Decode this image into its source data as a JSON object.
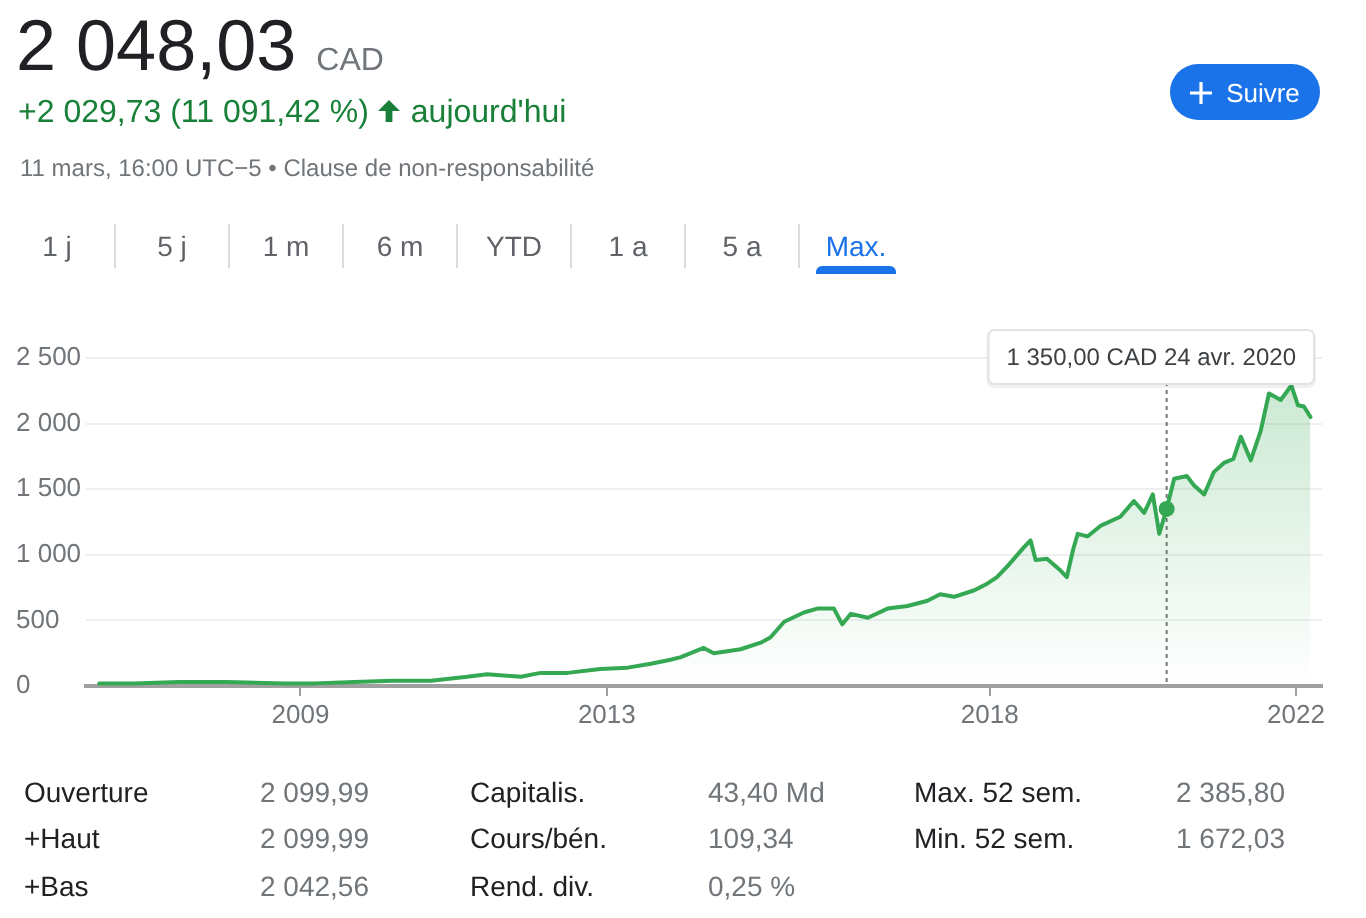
{
  "chart_data": [
    {
      "type": "area",
      "title": "2 048,03 CAD",
      "subtitle": "+2 029,73 (11 091,42 %) aujourd'hui",
      "annotations": [
        "11 mars, 16:00 UTC−5 • Clause de non-responsabilité",
        "1 j",
        "5 j",
        "1 m",
        "6 m",
        "YTD",
        "1 a",
        "5 a",
        "Max.",
        "Suivre"
      ],
      "series": [
        {
          "color": "#34a853",
          "x": [
            "2006-05-17",
            "2006-11-01",
            "2007-06-01",
            "2008-01-15",
            "2008-10-15",
            "2009-03-10",
            "2009-09-15",
            "2010-03-15",
            "2010-09-15",
            "2011-03-07",
            "2011-06-10",
            "2011-11-18",
            "2012-02-20",
            "2012-06-28",
            "2012-12-01",
            "2013-04-10",
            "2013-07-30",
            "2013-11-01",
            "2013-12-20",
            "2014-04-08",
            "2014-05-26",
            "2014-10-01",
            "2015-01-05",
            "2015-02-20",
            "2015-04-27",
            "2015-07-30",
            "2015-10-01",
            "2015-12-20",
            "2016-01-29",
            "2016-03-10",
            "2016-05-30",
            "2016-09-01",
            "2016-12-05",
            "2017-03-10",
            "2017-05-10",
            "2017-07-15",
            "2017-10-20",
            "2017-12-20",
            "2018-02-05",
            "2018-03-25",
            "2018-06-15",
            "2018-07-15",
            "2018-08-08",
            "2018-10-01",
            "2018-12-05",
            "2019-01-04",
            "2019-02-03",
            "2019-02-25",
            "2019-04-12",
            "2019-06-13",
            "2019-09-16",
            "2019-11-20",
            "2020-01-08",
            "2020-02-18",
            "2020-03-20",
            "2020-04-24",
            "2020-05-30",
            "2020-07-30",
            "2020-09-01",
            "2020-10-20",
            "2020-12-05",
            "2021-01-22",
            "2021-03-08",
            "2021-04-13",
            "2021-05-30",
            "2021-07-16",
            "2021-08-25",
            "2021-10-20",
            "2021-12-10",
            "2022-01-10",
            "2022-02-08",
            "2022-03-11"
          ],
          "values": [
            20,
            20,
            30,
            30,
            20,
            20,
            30,
            40,
            40,
            70,
            90,
            70,
            100,
            100,
            130,
            140,
            170,
            200,
            220,
            290,
            250,
            280,
            330,
            370,
            490,
            560,
            590,
            590,
            470,
            550,
            520,
            590,
            610,
            650,
            700,
            680,
            730,
            780,
            830,
            910,
            1060,
            1110,
            960,
            970,
            880,
            830,
            1040,
            1160,
            1140,
            1220,
            1290,
            1410,
            1320,
            1460,
            1160,
            1350,
            1580,
            1600,
            1530,
            1460,
            1630,
            1700,
            1730,
            1900,
            1720,
            1940,
            2230,
            2180,
            2290,
            2140,
            2130,
            2050
          ]
        },
        {
          "type": "scatter",
          "color": "#34a853",
          "marker": "circle",
          "x": [
            "2020-04-24"
          ],
          "values": [
            1350
          ]
        }
      ],
      "xlim": [
        "2006-03-15",
        "2022-05-05"
      ],
      "xticks": [
        "2009",
        "2013",
        "2018",
        "2022"
      ],
      "ylim": [
        0,
        2500
      ],
      "yticks": [
        0,
        500,
        {
          "value": 1000,
          "label": "1 000"
        },
        {
          "value": 1500,
          "label": "1 500"
        },
        {
          "value": 2000,
          "label": "2 000"
        },
        {
          "value": 2500,
          "label": "2 500"
        }
      ],
      "grid": "y",
      "ref_lines": [
        {
          "axis": "x",
          "value": "2020-04-24",
          "label": "1 350,00 CAD 24 avr. 2020",
          "color": "#757575",
          "line_style": "dotted"
        }
      ]
    },
    {
      "type": "other",
      "annotations": [
        "Ouverture",
        "2 099,99",
        "Capitalis.",
        "43,40 Md",
        "Max. 52 sem.",
        "2 385,80",
        "+Haut",
        "2 099,99",
        "Cours/bén.",
        "109,34",
        "Min. 52 sem.",
        "1 672,03",
        "+Bas",
        "2 042,56",
        "Rend. div.",
        "0,25 %"
      ]
    }
  ]
}
